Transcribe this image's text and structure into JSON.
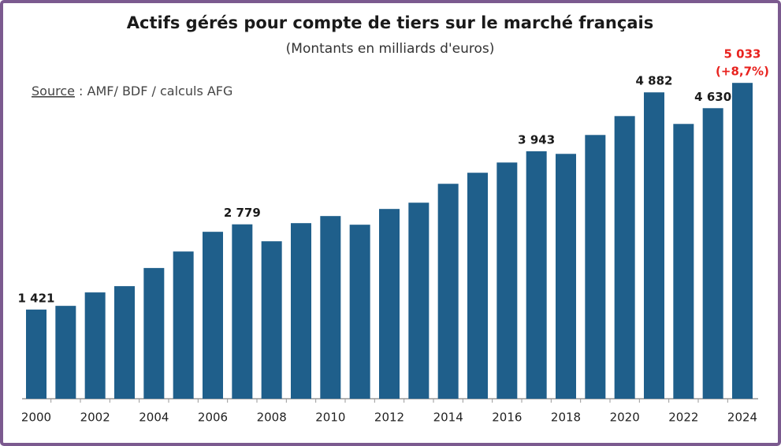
{
  "chart_data": {
    "type": "bar",
    "title": "Actifs gérés pour compte de tiers sur le marché français",
    "subtitle": "(Montants en milliards d'euros)",
    "source_label": "Source",
    "source_text": " : AMF/ BDF / calculs AFG",
    "categories": [
      "2000",
      null,
      "2002",
      null,
      "2004",
      null,
      "2006",
      null,
      "2008",
      null,
      "2010",
      null,
      "2012",
      null,
      "2014",
      null,
      "2016",
      null,
      "2018",
      null,
      "2020",
      null,
      "2022",
      null,
      "2024"
    ],
    "values": [
      1421,
      1480,
      1694,
      1794,
      2083,
      2346,
      2660,
      2779,
      2509,
      2798,
      2911,
      2773,
      3024,
      3124,
      3425,
      3601,
      3764,
      3943,
      3902,
      4203,
      4504,
      4882,
      4379,
      4630,
      5033
    ],
    "value_labels": [
      "1 421",
      null,
      null,
      null,
      null,
      null,
      null,
      "2 779",
      null,
      null,
      null,
      null,
      null,
      null,
      null,
      null,
      null,
      "3 943",
      null,
      null,
      null,
      "4 882",
      null,
      "4 630",
      "5 033"
    ],
    "annotation": "(+8,7%)",
    "color": "#1f5f8b",
    "highlight_color": "#e8231f",
    "ylim": [
      0,
      5500
    ]
  }
}
